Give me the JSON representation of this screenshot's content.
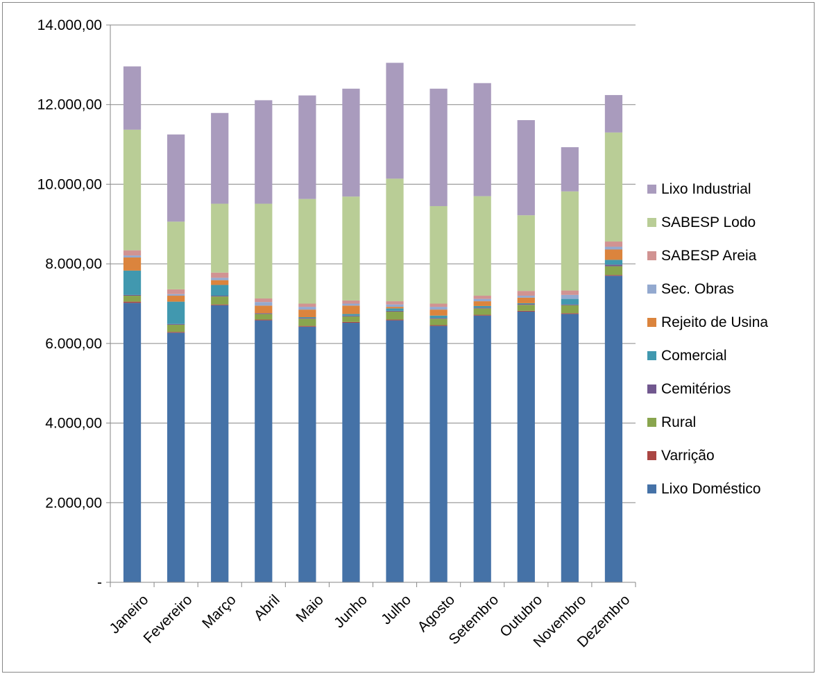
{
  "chart_data": {
    "type": "bar",
    "stacked": true,
    "title": "",
    "xlabel": "",
    "ylabel": "",
    "ylim": [
      0,
      14000
    ],
    "y_ticks": [
      "-",
      "2.000,00",
      "4.000,00",
      "6.000,00",
      "8.000,00",
      "10.000,00",
      "12.000,00",
      "14.000,00"
    ],
    "grid": true,
    "legend_position": "right",
    "categories": [
      "Janeiro",
      "Fevereiro",
      "Março",
      "Abril",
      "Maio",
      "Junho",
      "Julho",
      "Agosto",
      "Setembro",
      "Outubro",
      "Novembro",
      "Dezembro"
    ],
    "series": [
      {
        "name": "Lixo Doméstico",
        "color": "#4572A7",
        "values": [
          7020,
          6270,
          6960,
          6580,
          6420,
          6520,
          6580,
          6440,
          6700,
          6800,
          6740,
          7700
        ]
      },
      {
        "name": "Varrição",
        "color": "#AA4643",
        "values": [
          30,
          20,
          20,
          20,
          20,
          20,
          20,
          20,
          20,
          20,
          20,
          20
        ]
      },
      {
        "name": "Rural",
        "color": "#89A54E",
        "values": [
          150,
          180,
          200,
          140,
          180,
          140,
          200,
          160,
          160,
          150,
          200,
          220
        ]
      },
      {
        "name": "Cemitérios",
        "color": "#71588F",
        "values": [
          20,
          20,
          20,
          20,
          20,
          20,
          20,
          20,
          20,
          20,
          20,
          40
        ]
      },
      {
        "name": "Comercial",
        "color": "#4198AF",
        "values": [
          610,
          560,
          270,
          0,
          20,
          40,
          60,
          60,
          40,
          20,
          140,
          120
        ]
      },
      {
        "name": "Rejeito de Usina",
        "color": "#DB843D",
        "values": [
          330,
          150,
          120,
          190,
          190,
          210,
          40,
          150,
          120,
          140,
          0,
          260
        ]
      },
      {
        "name": "Sec. Obras",
        "color": "#93A9CF",
        "values": [
          50,
          40,
          60,
          90,
          70,
          50,
          60,
          70,
          60,
          50,
          100,
          70
        ]
      },
      {
        "name": "SABESP Areia",
        "color": "#D19392",
        "values": [
          130,
          120,
          130,
          90,
          80,
          80,
          80,
          80,
          80,
          120,
          110,
          130
        ]
      },
      {
        "name": "SABESP Lodo",
        "color": "#B9CD96",
        "values": [
          3030,
          1700,
          1730,
          2380,
          2630,
          2610,
          3080,
          2450,
          2500,
          1900,
          2490,
          2740
        ]
      },
      {
        "name": "Lixo Industrial",
        "color": "#A99BBD",
        "values": [
          1590,
          2190,
          2280,
          2600,
          2600,
          2710,
          2910,
          2950,
          2840,
          2390,
          1110,
          940
        ]
      }
    ]
  }
}
